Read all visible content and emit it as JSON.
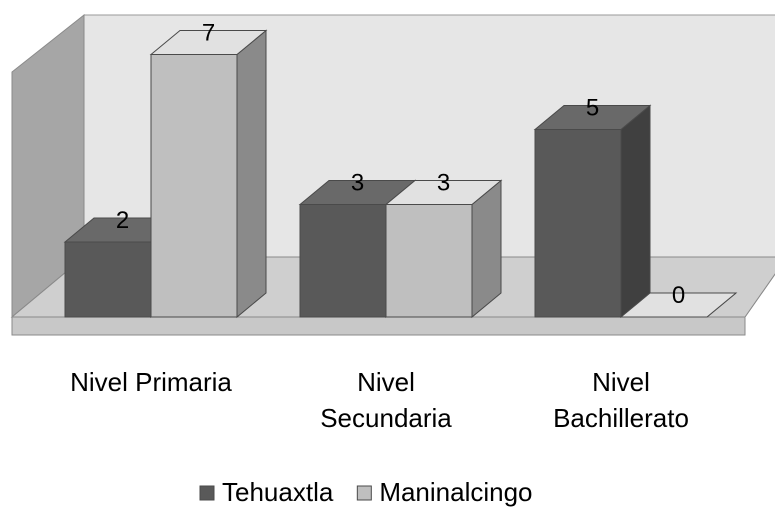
{
  "chart_data": {
    "type": "bar",
    "title": "",
    "xlabel": "",
    "ylabel": "",
    "ylim": [
      0,
      7
    ],
    "grid": false,
    "legend_position": "bottom",
    "categories": [
      [
        "Nivel Primaria"
      ],
      [
        "Nivel",
        "Secundaria"
      ],
      [
        "Nivel",
        "Bachillerato"
      ]
    ],
    "series": [
      {
        "name": "Tehuaxtla",
        "values": [
          2,
          3,
          5
        ],
        "color": "#595959"
      },
      {
        "name": "Maninalcingo",
        "values": [
          7,
          3,
          0
        ],
        "color": "#bfbfbf"
      }
    ],
    "data_labels": true,
    "style": "3d"
  }
}
